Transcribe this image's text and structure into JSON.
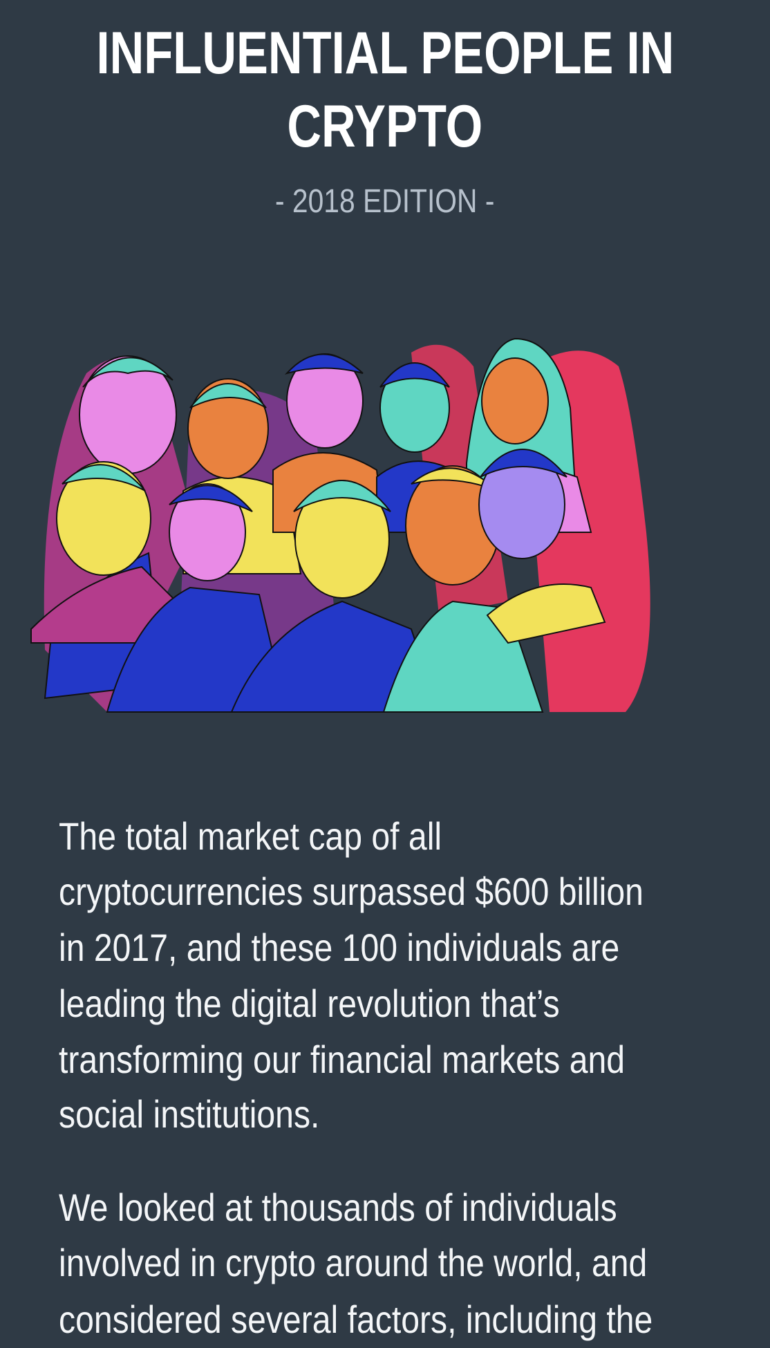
{
  "header": {
    "title_lines": [
      "INFLUENTIAL PEOPLE IN",
      "CRYPTO"
    ],
    "subtitle": "- 2018 EDITION -"
  },
  "hero": {
    "image": "illustration-of-eleven-crypto-influencers",
    "colors": [
      "#2338c8",
      "#f2e25a",
      "#e98ae6",
      "#5fd6c2",
      "#e9823f",
      "#b43c8c",
      "#e4385e"
    ]
  },
  "body": {
    "paragraphs": [
      {
        "lines": [
          "The total market cap of all",
          "cryptocurrencies surpassed $600 billion",
          "in 2017, and these 100 individuals are",
          "leading the digital revolution that’s",
          "transforming our financial markets and",
          "social institutions."
        ]
      },
      {
        "lines": [
          "We looked at thousands of individuals",
          "involved in crypto around the world, and",
          "considered several factors, including the"
        ]
      }
    ]
  },
  "colors": {
    "background": "#2f3a45",
    "text": "#ffffff",
    "subtitle": "#b7c1cc"
  }
}
